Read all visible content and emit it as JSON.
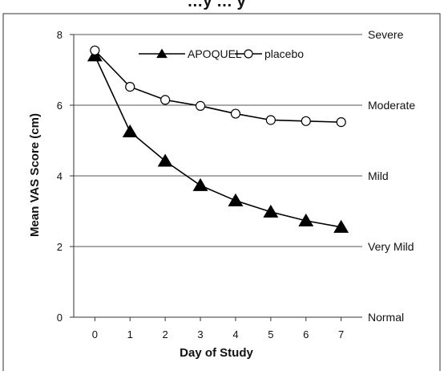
{
  "chart_data": {
    "type": "line",
    "title": "…y … y",
    "xlabel": "Day of Study",
    "ylabel": "Mean VAS Score (cm)",
    "x": [
      0,
      1,
      2,
      3,
      4,
      5,
      6,
      7
    ],
    "xlim": [
      -0.6,
      7.6
    ],
    "ylim": [
      0,
      8
    ],
    "xticks": [
      "0",
      "1",
      "2",
      "3",
      "4",
      "5",
      "6",
      "7"
    ],
    "yticks": [
      "0",
      "2",
      "4",
      "6",
      "8"
    ],
    "grid": "horizontal at 2, 4, 6, 8",
    "legend_position": "top",
    "severity_labels": [
      {
        "label": "Severe",
        "value": 8
      },
      {
        "label": "Moderate",
        "value": 6
      },
      {
        "label": "Mild",
        "value": 4
      },
      {
        "label": "Very Mild",
        "value": 2
      },
      {
        "label": "Normal",
        "value": 0
      }
    ],
    "series": [
      {
        "name": "APOQUEL",
        "marker": "filled-triangle",
        "color": "#000000",
        "values": [
          7.4,
          5.25,
          4.42,
          3.73,
          3.3,
          2.98,
          2.73,
          2.55
        ]
      },
      {
        "name": "placebo",
        "marker": "open-circle",
        "color": "#000000",
        "values": [
          7.55,
          6.52,
          6.15,
          5.98,
          5.76,
          5.58,
          5.55,
          5.52
        ]
      }
    ]
  }
}
